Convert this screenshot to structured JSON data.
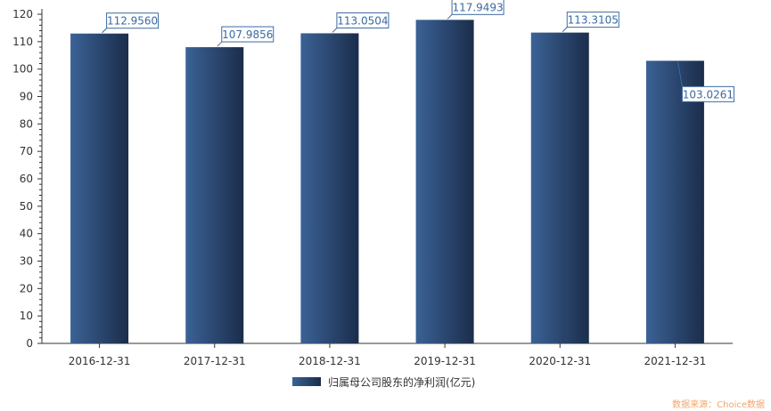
{
  "chart_data": {
    "type": "bar",
    "categories": [
      "2016-12-31",
      "2017-12-31",
      "2018-12-31",
      "2019-12-31",
      "2020-12-31",
      "2021-12-31"
    ],
    "series": [
      {
        "name": "归属母公司股东的净利润(亿元)",
        "values": [
          112.956,
          107.9856,
          113.0504,
          117.9493,
          113.3105,
          103.0261
        ],
        "labels": [
          "112.9560",
          "107.9856",
          "113.0504",
          "117.9493",
          "113.3105",
          "103.0261"
        ]
      }
    ],
    "yticks": [
      0,
      10,
      20,
      30,
      40,
      50,
      60,
      70,
      80,
      90,
      100,
      110,
      120
    ],
    "ylim": [
      0,
      120
    ],
    "grid": false,
    "legend_position": "bottom-center"
  },
  "colors": {
    "bar_dark": "#1b2d4b",
    "bar_light": "#3b6296",
    "label_border": "#3b6aa0",
    "label_text": "#3b6aa0",
    "axis": "#333333"
  },
  "source": "数据来源：Choice数据"
}
